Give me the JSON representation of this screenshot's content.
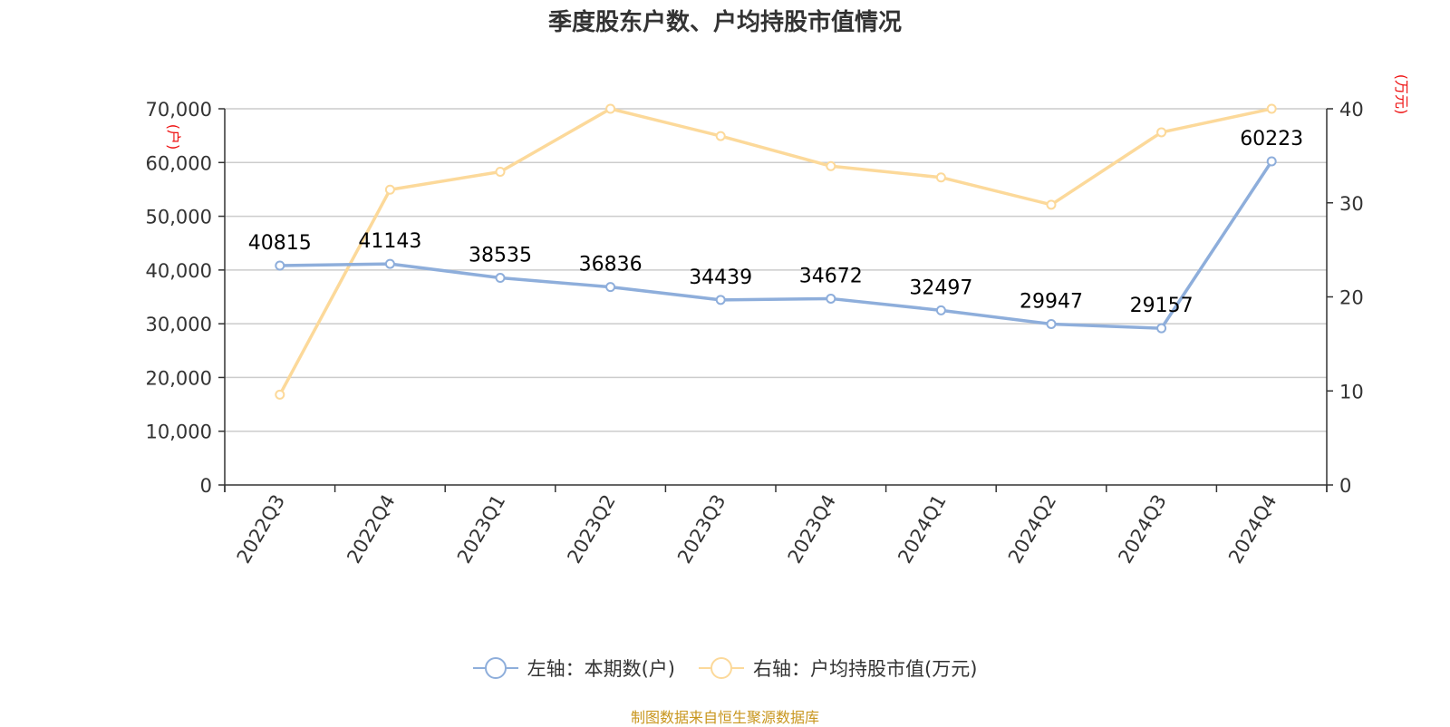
{
  "title": "季度股东户数、户均持股市值情况",
  "source_note": "制图数据来自恒生聚源数据库",
  "left_unit": "(户)",
  "right_unit": "(万元)",
  "colors": {
    "left_series": "#8eaedb",
    "right_series": "#fcd99a",
    "unit": "#ee1111",
    "source": "#c8961e"
  },
  "legend": [
    {
      "label": "左轴：本期数(户)"
    },
    {
      "label": "右轴：户均持股市值(万元)"
    }
  ],
  "chart_data": {
    "type": "line",
    "categories": [
      "2022Q3",
      "2022Q4",
      "2023Q1",
      "2023Q2",
      "2023Q3",
      "2023Q4",
      "2024Q1",
      "2024Q2",
      "2024Q3",
      "2024Q4"
    ],
    "left_ticks": [
      "0",
      "10,000",
      "20,000",
      "30,000",
      "40,000",
      "50,000",
      "60,000",
      "70,000"
    ],
    "right_ticks": [
      "0",
      "10",
      "20",
      "30",
      "40"
    ],
    "y_left_range": [
      0,
      70000
    ],
    "y_right_range": [
      0,
      40
    ],
    "grid": true,
    "legend_position": "bottom",
    "series": [
      {
        "name": "左轴：本期数(户)",
        "axis": "left",
        "values": [
          40815,
          41143,
          38535,
          36836,
          34439,
          34672,
          32497,
          29947,
          29157,
          60223
        ],
        "labels": [
          "40815",
          "41143",
          "38535",
          "36836",
          "34439",
          "34672",
          "32497",
          "29947",
          "29157",
          "60223"
        ]
      },
      {
        "name": "右轴：户均持股市值(万元)",
        "axis": "right",
        "values": [
          9.6,
          31.4,
          33.3,
          40.0,
          37.1,
          33.9,
          32.7,
          29.8,
          37.5,
          40.0
        ]
      }
    ]
  }
}
